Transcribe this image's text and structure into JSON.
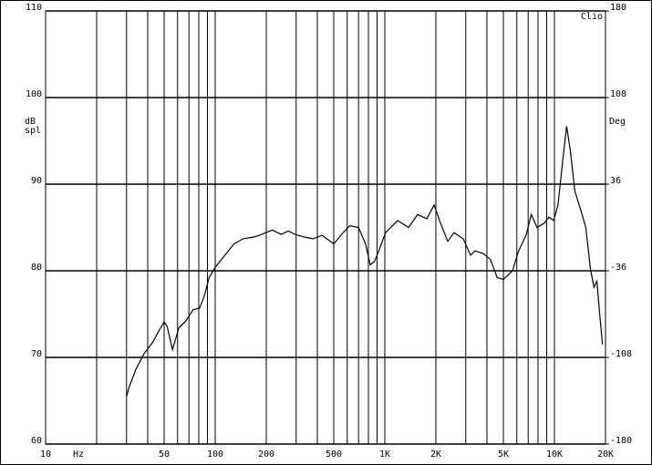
{
  "chart_data": {
    "type": "line",
    "x_scale": "log",
    "y_label": [
      "dB",
      "spl"
    ],
    "y2_label": "Deg",
    "x_unit": "Hz",
    "corner_label": "Clio",
    "x": [
      30,
      31,
      34,
      38,
      43,
      47,
      50,
      52,
      56,
      61,
      67,
      74,
      81,
      86,
      92,
      100,
      114,
      129,
      146,
      170,
      188,
      217,
      245,
      270,
      295,
      334,
      377,
      427,
      500,
      550,
      620,
      700,
      770,
      820,
      870,
      930,
      1010,
      1190,
      1380,
      1560,
      1770,
      1950,
      2130,
      2350,
      2560,
      2900,
      3200,
      3400,
      3800,
      4200,
      4600,
      5000,
      5660,
      6150,
      6800,
      7300,
      7900,
      8700,
      9300,
      9900,
      10500,
      11200,
      11800,
      12400,
      13200,
      14400,
      15300,
      16300,
      17100,
      17800,
      18500,
      19200
    ],
    "values": [
      65.5,
      66.5,
      68.6,
      70.4,
      71.8,
      73.2,
      74.1,
      73.6,
      70.9,
      73.4,
      74.2,
      75.5,
      75.7,
      77,
      79.2,
      80.4,
      81.8,
      83.1,
      83.7,
      83.9,
      84.2,
      84.7,
      84.2,
      84.6,
      84.2,
      83.9,
      83.7,
      84.1,
      83.1,
      84.1,
      85.2,
      85,
      83.1,
      80.7,
      81.1,
      82.5,
      84.4,
      85.8,
      85,
      86.5,
      86,
      87.6,
      85.5,
      83.4,
      84.4,
      83.7,
      81.8,
      82.3,
      82,
      81.3,
      79.2,
      79,
      80,
      82.3,
      84.1,
      86.5,
      85,
      85.5,
      86.2,
      85.8,
      87.6,
      92.8,
      96.7,
      93.9,
      89.2,
      86.8,
      85,
      80.2,
      78.1,
      78.8,
      74.9,
      71.5
    ],
    "color": "#000000",
    "xlim": [
      10,
      20000
    ],
    "xticks": [
      10,
      50,
      100,
      200,
      500,
      {
        "value": 1000,
        "label": "1K"
      },
      {
        "value": 2000,
        "label": "2K"
      },
      {
        "value": 5000,
        "label": "5K"
      },
      {
        "value": 10000,
        "label": "10K"
      },
      {
        "value": 20000,
        "label": "20K"
      }
    ],
    "xgrid": [
      20,
      30,
      40,
      60,
      70,
      80,
      90,
      300,
      400,
      600,
      700,
      800,
      900,
      3000,
      4000,
      6000,
      7000,
      8000,
      9000
    ],
    "ylim": [
      60,
      110
    ],
    "yticks": [
      60,
      70,
      80,
      90,
      100,
      110
    ],
    "y2lim": [
      -180,
      180
    ],
    "y2ticks": [
      -180,
      -108,
      -36,
      36,
      108,
      180
    ],
    "grid": true
  }
}
